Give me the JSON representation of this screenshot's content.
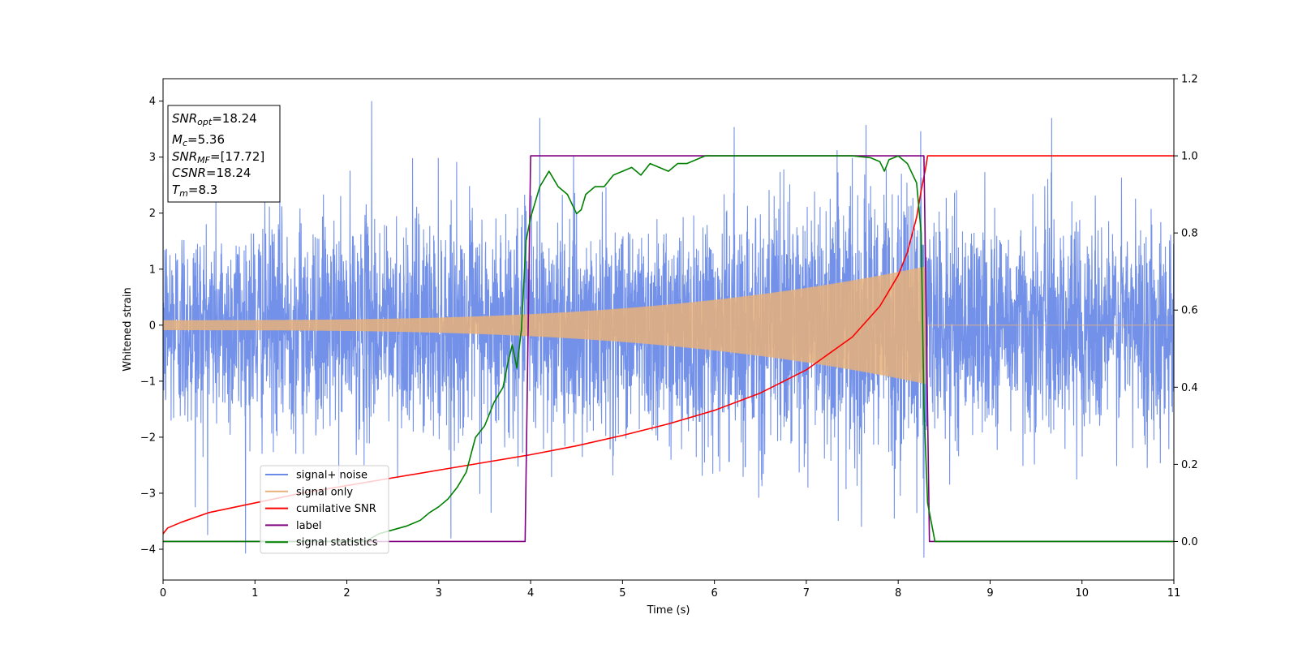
{
  "chart_data": {
    "type": "line",
    "title": "",
    "xlabel": "Time (s)",
    "ylabel": "Whitened strain",
    "xlim": [
      0,
      11
    ],
    "ylim": [
      -4.55,
      4.4
    ],
    "y2lim": [
      -0.1,
      1.2
    ],
    "xticks": [
      0,
      1,
      2,
      3,
      4,
      5,
      6,
      7,
      8,
      9,
      10,
      11
    ],
    "yticks": [
      -4,
      -3,
      -2,
      -1,
      0,
      1,
      2,
      3,
      4
    ],
    "y2ticks": [
      "0.0",
      "0.2",
      "0.4",
      "0.6",
      "0.8",
      "1.0",
      "1.2"
    ],
    "grid": false,
    "legend_position": "lower-left",
    "signal_end_time": 8.3,
    "series": [
      {
        "name": "signal+ noise",
        "axis": "left",
        "color": "#6b8be8",
        "kind": "noisy-strain",
        "noise_std": 0.95,
        "spikes": [
          [
            2.27,
            4.0
          ],
          [
            4.1,
            3.7
          ],
          [
            9.67,
            3.7
          ],
          [
            8.28,
            -4.15
          ],
          [
            0.35,
            -3.25
          ],
          [
            3.57,
            -3.35
          ],
          [
            7.6,
            -3.6
          ]
        ]
      },
      {
        "name": "signal only",
        "axis": "left",
        "color": "#e8b07a",
        "kind": "chirp",
        "amplitude_start": 0.09,
        "amplitude_end": 1.05,
        "t_start": 0,
        "t_end": 8.3
      },
      {
        "name": "cumilative SNR",
        "axis": "right",
        "color": "#ff0000",
        "x": [
          0,
          0.05,
          0.2,
          0.5,
          1,
          1.5,
          2,
          2.5,
          3,
          3.5,
          4,
          4.5,
          5,
          5.5,
          6,
          6.5,
          7,
          7.5,
          7.8,
          8.0,
          8.1,
          8.2,
          8.25,
          8.3,
          8.32,
          11
        ],
        "y": [
          0.02,
          0.035,
          0.05,
          0.075,
          0.1,
          0.125,
          0.145,
          0.165,
          0.185,
          0.205,
          0.225,
          0.248,
          0.275,
          0.305,
          0.34,
          0.385,
          0.445,
          0.53,
          0.61,
          0.69,
          0.75,
          0.84,
          0.91,
          0.97,
          1.0,
          1.0
        ]
      },
      {
        "name": "label",
        "axis": "right",
        "color": "#800080",
        "x": [
          0,
          3.94,
          4.0,
          8.28,
          8.34,
          11
        ],
        "y": [
          0,
          0,
          1,
          1,
          0,
          0
        ]
      },
      {
        "name": "signal statistics",
        "axis": "right",
        "color": "#008000",
        "x": [
          0,
          2.2,
          2.35,
          2.5,
          2.65,
          2.8,
          2.9,
          3.0,
          3.1,
          3.2,
          3.3,
          3.4,
          3.5,
          3.6,
          3.7,
          3.75,
          3.8,
          3.85,
          3.9,
          3.95,
          4.0,
          4.1,
          4.2,
          4.3,
          4.4,
          4.5,
          4.55,
          4.6,
          4.7,
          4.8,
          4.9,
          5.0,
          5.1,
          5.2,
          5.3,
          5.4,
          5.5,
          5.6,
          5.7,
          5.8,
          5.9,
          6.0,
          6.2,
          6.5,
          7.0,
          7.5,
          7.7,
          7.8,
          7.85,
          7.9,
          8.0,
          8.1,
          8.2,
          8.25,
          8.28,
          8.32,
          8.4,
          8.5,
          8.6,
          11
        ],
        "y": [
          0,
          0,
          0.02,
          0.03,
          0.04,
          0.055,
          0.075,
          0.09,
          0.11,
          0.14,
          0.18,
          0.27,
          0.3,
          0.36,
          0.4,
          0.46,
          0.51,
          0.45,
          0.55,
          0.78,
          0.84,
          0.92,
          0.96,
          0.92,
          0.9,
          0.85,
          0.86,
          0.9,
          0.92,
          0.92,
          0.95,
          0.96,
          0.97,
          0.95,
          0.98,
          0.97,
          0.96,
          0.98,
          0.98,
          0.99,
          1.0,
          1.0,
          1.0,
          1.0,
          1.0,
          1.0,
          0.995,
          0.985,
          0.96,
          0.99,
          1.0,
          0.98,
          0.93,
          0.8,
          0.35,
          0.1,
          0.0,
          0.0,
          0.0,
          0.0
        ]
      }
    ],
    "annotation": {
      "lines": [
        {
          "symbol": "SNR",
          "sub": "opt",
          "value": "=18.24"
        },
        {
          "symbol": "M",
          "sub": "c",
          "value": "=5.36"
        },
        {
          "symbol": "SNR",
          "sub": "MF",
          "value": "=[17.72]"
        },
        {
          "symbol": "CSNR",
          "sub": "",
          "value": "=18.24"
        },
        {
          "symbol": "T",
          "sub": "m",
          "value": "=8.3"
        }
      ]
    }
  }
}
